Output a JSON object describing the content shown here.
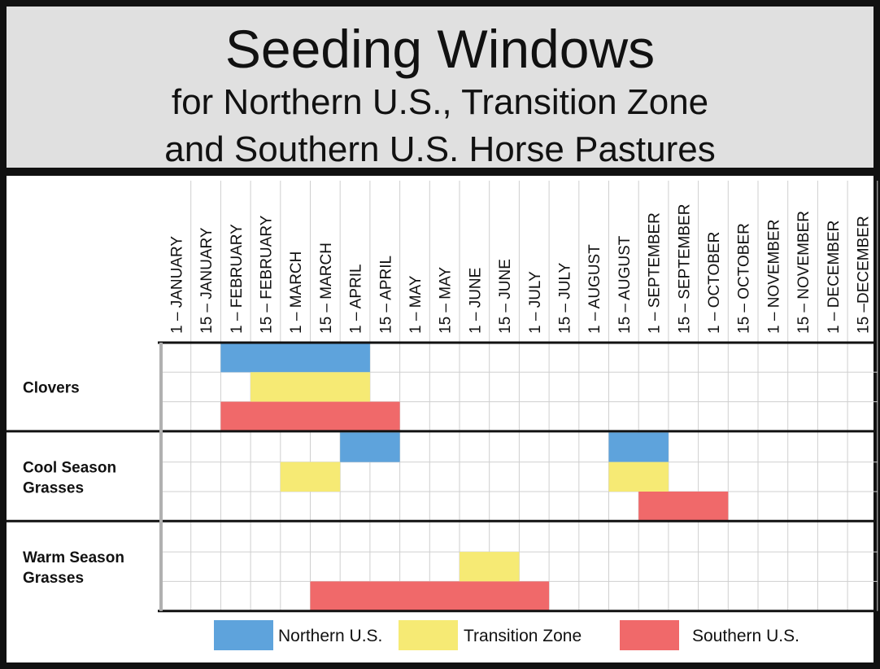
{
  "header": {
    "title": "Seeding Windows",
    "subtitle_line1": "for Northern U.S., Transition Zone",
    "subtitle_line2": "and Southern U.S. Horse Pastures"
  },
  "colors": {
    "Northern U.S.": "#5ea3dc",
    "Transition Zone": "#f6ea74",
    "Southern U.S.": "#f0696a"
  },
  "chart_data": {
    "type": "gantt",
    "title": "Seeding Windows",
    "subtitle": "for Northern U.S., Transition Zone and Southern U.S. Horse Pastures",
    "x_ticks": [
      "1 – JANUARY",
      "15 – JANUARY",
      "1 – FEBRUARY",
      "15 – FEBRUARY",
      "1 – MARCH",
      "15 – MARCH",
      "1 – APRIL",
      "15 – APRIL",
      "1 – MAY",
      "15 – MAY",
      "1 – JUNE",
      "15 – JUNE",
      "1 – JULY",
      "15 – JULY",
      "1 – AUGUST",
      "15 – AUGUST",
      "1 – SEPTEMBER",
      "15 – SEPTEMBER",
      "1 – OCTOBER",
      "15 – OCTOBER",
      "1 – NOVEMBER",
      "15 – NOVEMBER",
      "1 – DECEMBER",
      "15 –DECEMBER"
    ],
    "groups": [
      {
        "name": "Clovers",
        "label_lines": [
          "Clovers"
        ],
        "bars": [
          {
            "series": "Northern U.S.",
            "start": "1 – FEBRUARY",
            "end": "15 – APRIL"
          },
          {
            "series": "Transition Zone",
            "start": "15 – FEBRUARY",
            "end": "15 – APRIL"
          },
          {
            "series": "Southern U.S.",
            "start": "1 – FEBRUARY",
            "end": "1 – MAY"
          }
        ]
      },
      {
        "name": "Cool Season Grasses",
        "label_lines": [
          "Cool Season",
          "Grasses"
        ],
        "bars": [
          {
            "series": "Northern U.S.",
            "start": "1 – APRIL",
            "end": "1 – MAY"
          },
          {
            "series": "Northern U.S.",
            "start": "15 – AUGUST",
            "end": "15 – SEPTEMBER"
          },
          {
            "series": "Transition Zone",
            "start": "1 – MARCH",
            "end": "1 – APRIL"
          },
          {
            "series": "Transition Zone",
            "start": "15 – AUGUST",
            "end": "15 – SEPTEMBER"
          },
          {
            "series": "Southern U.S.",
            "start": "1 – SEPTEMBER",
            "end": "15 – OCTOBER"
          }
        ]
      },
      {
        "name": "Warm Season Grasses",
        "label_lines": [
          "Warm Season",
          "Grasses"
        ],
        "bars": [
          {
            "series": "Transition Zone",
            "start": "1 – JUNE",
            "end": "1 – JULY"
          },
          {
            "series": "Southern U.S.",
            "start": "15 – MARCH",
            "end": "15 – JULY"
          }
        ]
      }
    ],
    "series": [
      "Northern U.S.",
      "Transition Zone",
      "Southern U.S."
    ],
    "legend": [
      "Northern U.S.",
      "Transition Zone",
      "Southern U.S."
    ],
    "legend_position": "bottom"
  }
}
